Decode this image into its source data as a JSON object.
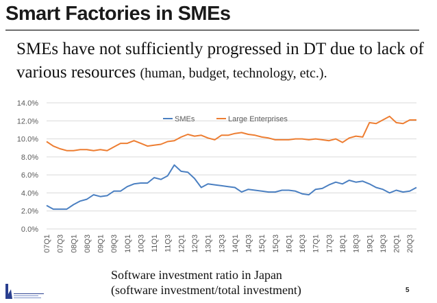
{
  "slide": {
    "title": "Smart Factories in SMEs",
    "subtitle_main": "SMEs have not sufficiently progressed in DT due to lack of various resources ",
    "subtitle_paren": "(human, budget, technology, etc.).",
    "caption_line1": "Software investment ratio in Japan",
    "caption_line2": "(software investment/total investment)",
    "page_number": "5",
    "logo_text": "JAIST"
  },
  "chart_data": {
    "type": "line",
    "title": "",
    "xlabel": "",
    "ylabel": "",
    "ylim": [
      0,
      14
    ],
    "yticks": [
      "0.0%",
      "2.0%",
      "4.0%",
      "6.0%",
      "8.0%",
      "10.0%",
      "12.0%",
      "14.0%"
    ],
    "grid": true,
    "legend": "top-center",
    "x": [
      "07Q1",
      "07Q2",
      "07Q3",
      "07Q4",
      "08Q1",
      "08Q2",
      "08Q3",
      "08Q4",
      "09Q1",
      "09Q2",
      "09Q3",
      "09Q4",
      "10Q1",
      "10Q2",
      "10Q3",
      "10Q4",
      "11Q1",
      "11Q2",
      "11Q3",
      "11Q4",
      "12Q1",
      "12Q2",
      "12Q3",
      "12Q4",
      "13Q1",
      "13Q2",
      "13Q3",
      "13Q4",
      "14Q1",
      "14Q2",
      "14Q3",
      "14Q4",
      "15Q1",
      "15Q2",
      "15Q3",
      "15Q4",
      "16Q1",
      "16Q2",
      "16Q3",
      "16Q4",
      "17Q1",
      "17Q2",
      "17Q3",
      "17Q4",
      "18Q1",
      "18Q2",
      "18Q3",
      "18Q4",
      "19Q1",
      "19Q2",
      "19Q3",
      "19Q4",
      "20Q1",
      "20Q2",
      "20Q3",
      "20Q4"
    ],
    "x_tick_labels": [
      "07Q1",
      "07Q3",
      "08Q1",
      "08Q3",
      "09Q1",
      "09Q3",
      "10Q1",
      "10Q3",
      "11Q1",
      "11Q3",
      "12Q1",
      "12Q3",
      "13Q1",
      "13Q3",
      "14Q1",
      "14Q3",
      "15Q1",
      "15Q3",
      "16Q1",
      "16Q3",
      "17Q1",
      "17Q3",
      "18Q1",
      "18Q3",
      "19Q1",
      "19Q3",
      "20Q1",
      "20Q3"
    ],
    "series": [
      {
        "name": "SMEs",
        "color": "#4a7fc1",
        "values": [
          2.6,
          2.2,
          2.2,
          2.2,
          2.7,
          3.1,
          3.3,
          3.8,
          3.6,
          3.7,
          4.2,
          4.2,
          4.7,
          5.0,
          5.1,
          5.1,
          5.7,
          5.5,
          5.9,
          7.1,
          6.4,
          6.3,
          5.6,
          4.6,
          5.0,
          4.9,
          4.8,
          4.7,
          4.6,
          4.1,
          4.4,
          4.3,
          4.2,
          4.1,
          4.1,
          4.3,
          4.3,
          4.2,
          3.9,
          3.8,
          4.4,
          4.5,
          4.9,
          5.2,
          5.0,
          5.4,
          5.2,
          5.3,
          5.0,
          4.6,
          4.4,
          4.0,
          4.3,
          4.1,
          4.2,
          4.6
        ]
      },
      {
        "name": "Large Enterprises",
        "color": "#ed7d31",
        "values": [
          9.7,
          9.2,
          8.9,
          8.7,
          8.7,
          8.8,
          8.8,
          8.7,
          8.8,
          8.7,
          9.1,
          9.5,
          9.5,
          9.8,
          9.5,
          9.2,
          9.3,
          9.4,
          9.7,
          9.8,
          10.2,
          10.5,
          10.3,
          10.4,
          10.1,
          9.9,
          10.4,
          10.4,
          10.6,
          10.7,
          10.5,
          10.4,
          10.2,
          10.1,
          9.9,
          9.9,
          9.9,
          10.0,
          10.0,
          9.9,
          10.0,
          9.9,
          9.8,
          10.0,
          9.6,
          10.1,
          10.3,
          10.2,
          11.8,
          11.7,
          12.1,
          12.5,
          11.8,
          11.7,
          12.1,
          12.1
        ]
      }
    ]
  }
}
